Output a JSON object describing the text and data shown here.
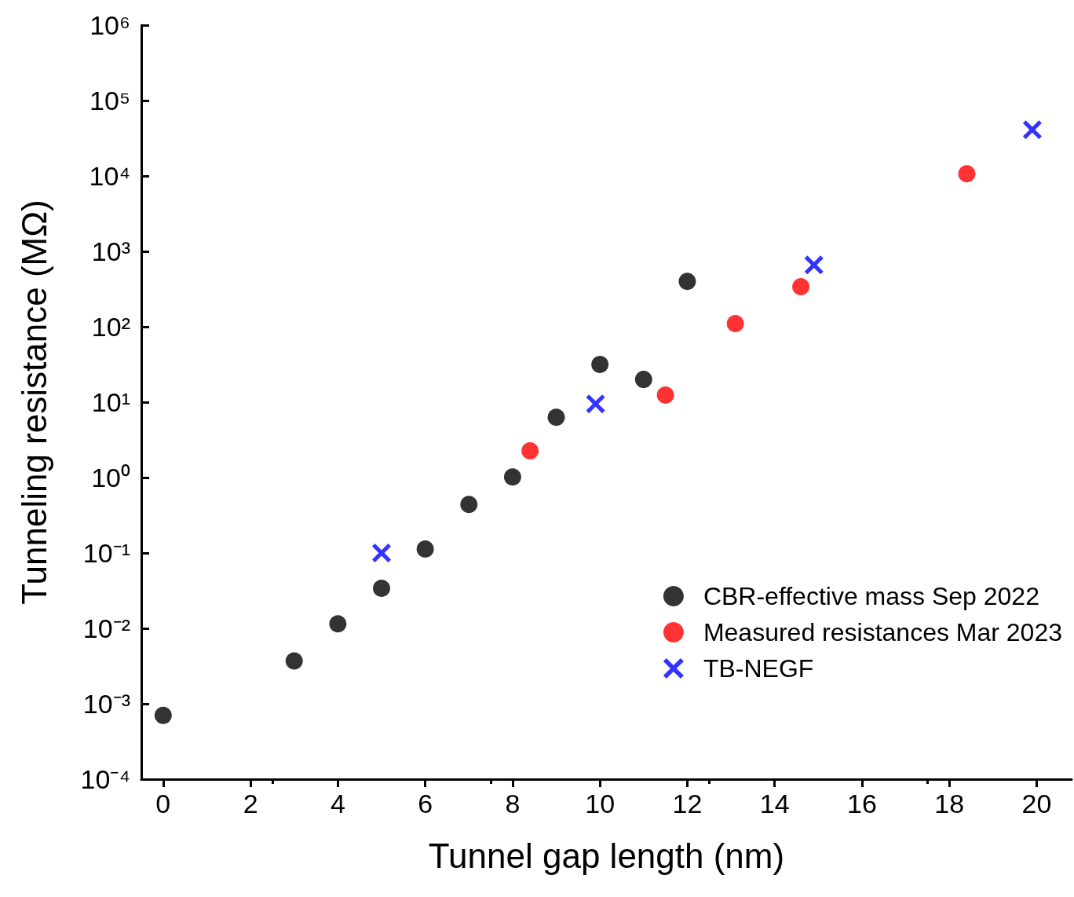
{
  "chart_data": {
    "type": "scatter",
    "xlabel": "Tunnel gap length (nm)",
    "ylabel": "Tunneling resistance (MΩ)",
    "log": "y",
    "xlim": [
      -0.5,
      20.8
    ],
    "xticks": [
      0,
      2,
      4,
      6,
      8,
      10,
      12,
      14,
      16,
      18,
      20
    ],
    "ylim": [
      0.0001,
      1000000
    ],
    "yticks": [
      {
        "value": 0.0001,
        "label": "10⁻⁴"
      },
      {
        "value": 0.001,
        "label": "10⁻³"
      },
      {
        "value": 0.01,
        "label": "10⁻²"
      },
      {
        "value": 0.1,
        "label": "10⁻¹"
      },
      {
        "value": 1,
        "label": "10⁰"
      },
      {
        "value": 10,
        "label": "10¹"
      },
      {
        "value": 100,
        "label": "10²"
      },
      {
        "value": 1000,
        "label": "10³"
      },
      {
        "value": 10000,
        "label": "10⁴"
      },
      {
        "value": 100000,
        "label": "10⁵"
      },
      {
        "value": 1000000,
        "label": "10⁶"
      }
    ],
    "grid": false,
    "legend": "bottom right",
    "series": [
      {
        "name": "CBR-effective mass Sep 2022",
        "color": "#000000",
        "marker": "circle",
        "x": [
          0,
          3,
          4,
          5,
          6,
          7,
          8,
          9,
          10,
          11,
          12
        ],
        "values": [
          0.0007,
          0.0037,
          0.0115,
          0.034,
          0.113,
          0.44,
          1.02,
          6.3,
          31.6,
          20,
          400
        ]
      },
      {
        "name": "Measured resistances Mar 2023",
        "color": "#ff0000",
        "marker": "circle",
        "x": [
          8.4,
          11.5,
          13.1,
          14.6,
          18.4
        ],
        "values": [
          2.26,
          12.4,
          110,
          340,
          10700
        ]
      },
      {
        "name": "TB-NEGF",
        "color": "#0000ff",
        "marker": "cross",
        "x": [
          5,
          9.9,
          14.9,
          19.9
        ],
        "values": [
          0.1,
          9.5,
          660,
          41000
        ]
      }
    ]
  }
}
